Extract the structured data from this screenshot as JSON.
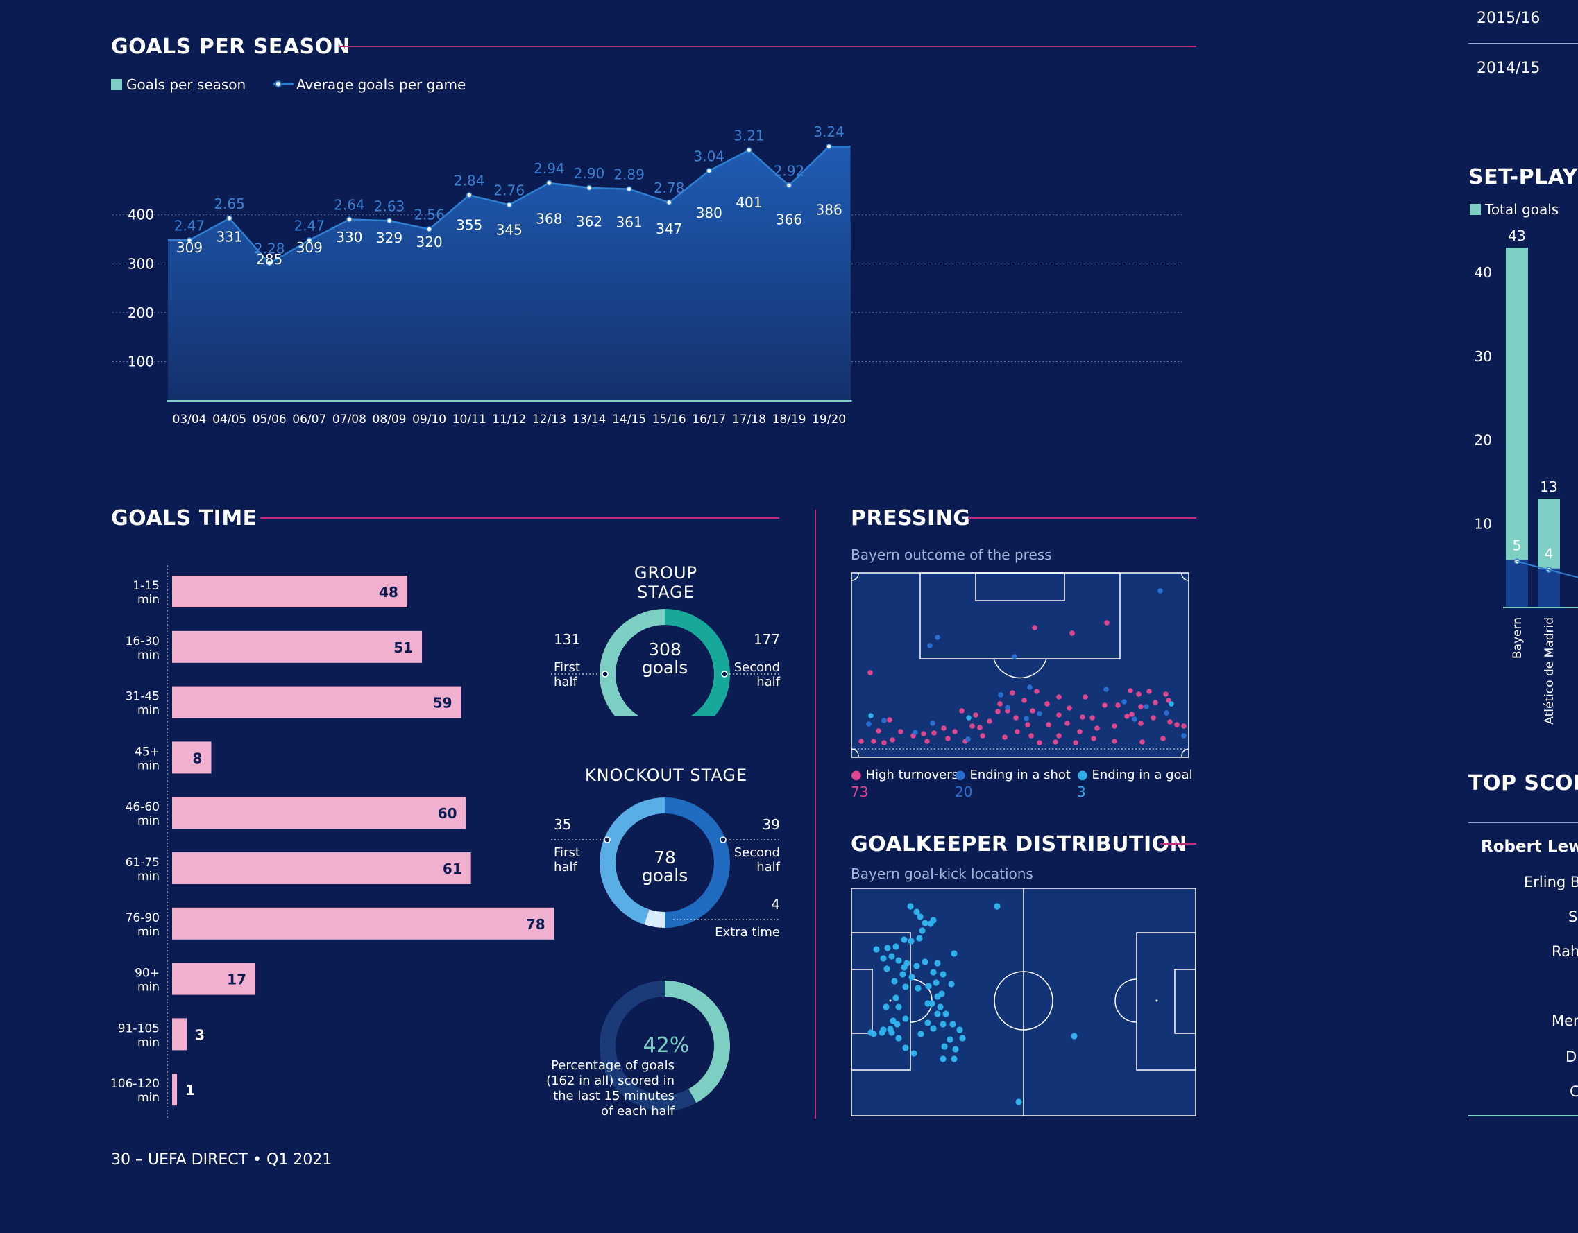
{
  "footer": "30 – UEFA DIRECT • Q1 2021",
  "goals_per_season": {
    "title": "GOALS PER SEASON",
    "legend_bar": "Goals per season",
    "legend_line": "Average goals per game",
    "colors": {
      "bar": "#7ecfc3",
      "line": "#2e7fd0",
      "area": "#1a4fa0"
    }
  },
  "goals_time": {
    "title": "GOALS TIME",
    "bar_color": "#f2b0d0"
  },
  "group_stage": {
    "title": "GROUP STAGE",
    "center_value": "308",
    "center_unit": "goals",
    "left_value": "131",
    "left_label1": "First",
    "left_label2": "half",
    "right_value": "177",
    "right_label1": "Second",
    "right_label2": "half"
  },
  "knockout_stage": {
    "title": "KNOCKOUT STAGE",
    "center_value": "78",
    "center_unit": "goals",
    "left_value": "35",
    "left_label1": "First",
    "left_label2": "half",
    "right_value": "39",
    "right_label1": "Second",
    "right_label2": "half",
    "extra_value": "4",
    "extra_label": "Extra time"
  },
  "late_goals": {
    "percent": "42%",
    "line1": "Percentage of goals",
    "line2": "(162 in all) scored in",
    "line3": "the last 15 minutes",
    "line4": "of each half"
  },
  "pressing": {
    "title": "PRESSING",
    "subtitle": "Bayern outcome of the press",
    "legend": [
      {
        "label": "High turnovers",
        "value": "73",
        "color": "#e0458f"
      },
      {
        "label": "Ending in a shot",
        "value": "20",
        "color": "#2a6fd0"
      },
      {
        "label": "Ending in a goal",
        "value": "3",
        "color": "#2fb0ea"
      }
    ]
  },
  "goalkeeper": {
    "title": "GOALKEEPER DISTRIBUTION",
    "subtitle": "Bayern goal-kick locations"
  },
  "right_panel": {
    "seasons": [
      "2015/16",
      "2014/15"
    ],
    "setplay_title": "SET-PLAY G",
    "setplay_legend": "Total goals",
    "top_scorers_title": "TOP SCORI",
    "scorers": [
      "Robert Lew",
      "Erling Br",
      "Se",
      "Rahe",
      "Mer",
      "D",
      "C"
    ]
  },
  "chart_data": [
    {
      "type": "bar",
      "name": "goals-per-season",
      "categories": [
        "03/04",
        "04/05",
        "05/06",
        "06/07",
        "07/08",
        "08/09",
        "09/10",
        "10/11",
        "11/12",
        "12/13",
        "13/14",
        "14/15",
        "15/16",
        "16/17",
        "17/18",
        "18/19",
        "19/20"
      ],
      "series": [
        {
          "name": "Goals per season",
          "values": [
            309,
            331,
            285,
            309,
            330,
            329,
            320,
            355,
            345,
            368,
            362,
            361,
            347,
            380,
            401,
            366,
            386
          ]
        },
        {
          "name": "Average goals per game",
          "values": [
            2.47,
            2.65,
            2.28,
            2.47,
            2.64,
            2.63,
            2.56,
            2.84,
            2.76,
            2.94,
            2.9,
            2.89,
            2.78,
            3.04,
            3.21,
            2.92,
            3.24
          ]
        }
      ],
      "ylim": [
        20,
        400
      ],
      "yticks": [
        100,
        200,
        300,
        400
      ],
      "grid": true,
      "legend": "top-left"
    },
    {
      "type": "bar",
      "name": "goals-time",
      "orientation": "horizontal",
      "categories": [
        [
          "1-15",
          "min"
        ],
        [
          "16-30",
          "min"
        ],
        [
          "31-45",
          "min"
        ],
        [
          "45+",
          "min"
        ],
        [
          "46-60",
          "min"
        ],
        [
          "61-75",
          "min"
        ],
        [
          "76-90",
          "min"
        ],
        [
          "90+",
          "min"
        ],
        [
          "91-105",
          "min"
        ],
        [
          "106-120",
          "min"
        ]
      ],
      "values": [
        48,
        51,
        59,
        8,
        60,
        61,
        78,
        17,
        3,
        1
      ]
    },
    {
      "type": "pie",
      "name": "group-stage",
      "series": [
        {
          "name": "First half",
          "value": 131
        },
        {
          "name": "Second half",
          "value": 177
        }
      ],
      "colors": [
        "#7ecfc3",
        "#17a89a"
      ]
    },
    {
      "type": "pie",
      "name": "knockout-stage",
      "series": [
        {
          "name": "First half",
          "value": 35
        },
        {
          "name": "Second half",
          "value": 39
        },
        {
          "name": "Extra time",
          "value": 4
        }
      ],
      "colors": [
        "#5aaee6",
        "#1f6bc0",
        "#d7ecf8"
      ]
    },
    {
      "type": "pie",
      "name": "late-goals",
      "series": [
        {
          "name": "Last 15 minutes",
          "value": 42
        },
        {
          "name": "Other",
          "value": 58
        }
      ],
      "colors": [
        "#7ecfc3",
        "#1a3a78"
      ]
    },
    {
      "type": "bar",
      "name": "set-play",
      "categories": [
        "Bayern",
        "Atlético de Madrid"
      ],
      "series": [
        {
          "name": "Total goals",
          "values": [
            43,
            13
          ]
        },
        {
          "name": "line",
          "values": [
            5,
            4
          ]
        }
      ],
      "ylim": [
        0,
        45
      ],
      "yticks": [
        10,
        20,
        30,
        40
      ]
    }
  ]
}
